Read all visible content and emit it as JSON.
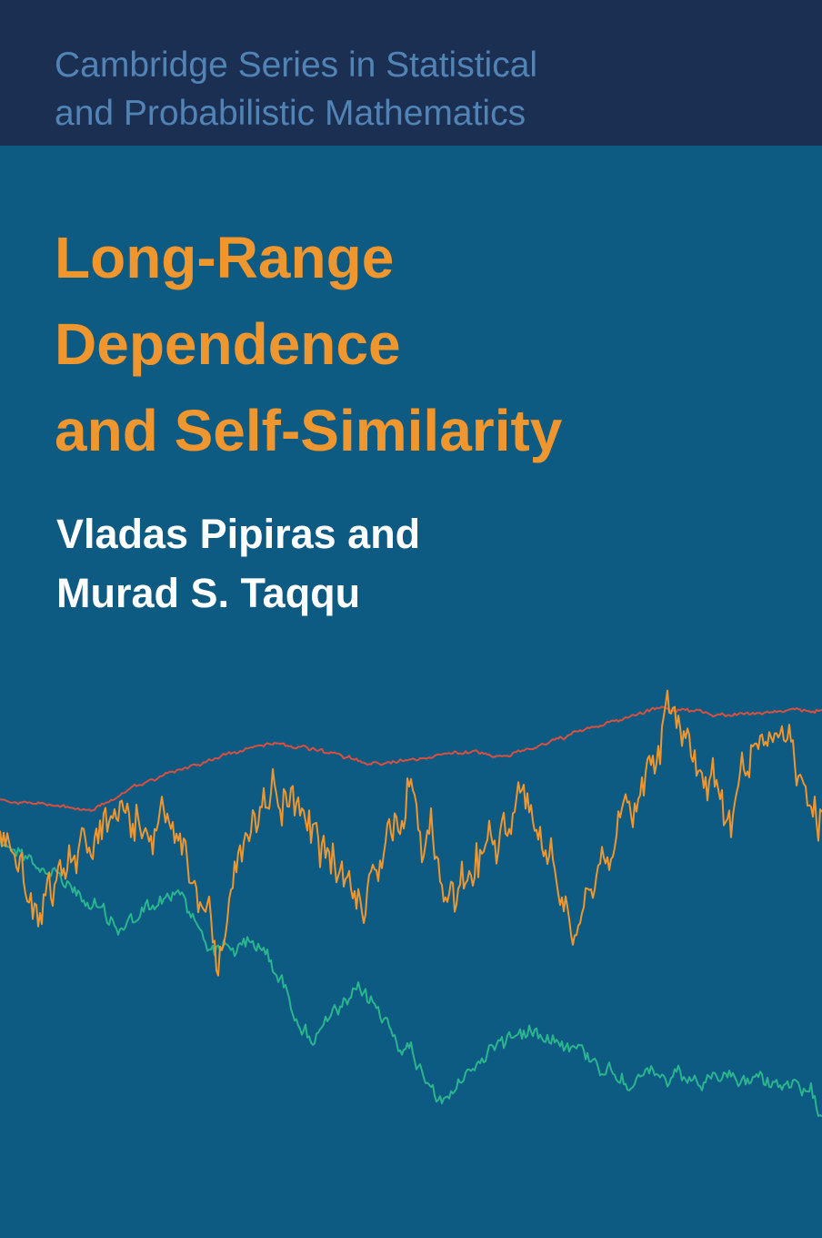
{
  "cover": {
    "series": [
      "Cambridge Series in Statistical",
      "and Probabilistic Mathematics"
    ],
    "title": [
      "Long-Range",
      "Dependence",
      "and Self-Similarity"
    ],
    "authors": [
      "Vladas Pipiras and",
      "Murad S. Taqqu"
    ]
  }
}
